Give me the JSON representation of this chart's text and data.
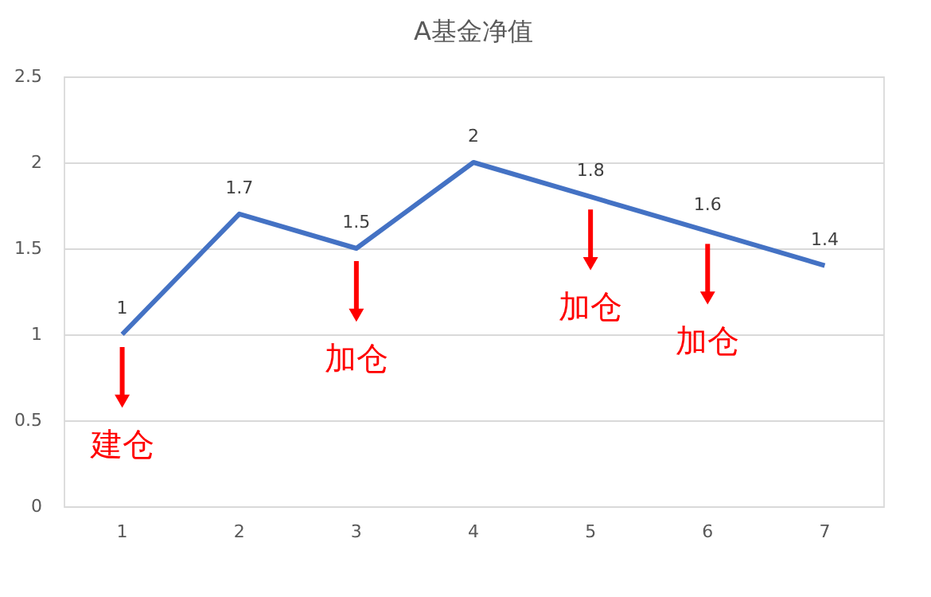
{
  "chart_data": {
    "type": "line",
    "title": "A基金净值",
    "categories": [
      "1",
      "2",
      "3",
      "4",
      "5",
      "6",
      "7"
    ],
    "series": [
      {
        "color": "#4472c4",
        "values": [
          1,
          1.7,
          1.5,
          2,
          1.8,
          1.6,
          1.4
        ]
      }
    ],
    "ylim": [
      0,
      2.5
    ],
    "yticks": [
      0,
      0.5,
      1,
      1.5,
      2,
      2.5
    ],
    "grid": "y",
    "data_labels": true,
    "marker": "none",
    "line_style": "solid",
    "annotations": [
      {
        "text": "建仓",
        "x": "1",
        "y": 1
      },
      {
        "text": "加仓",
        "x": "3",
        "y": 1.5
      },
      {
        "text": "加仓",
        "x": "5",
        "y": 1.8
      },
      {
        "text": "加仓",
        "x": "6",
        "y": 1.6
      }
    ]
  }
}
